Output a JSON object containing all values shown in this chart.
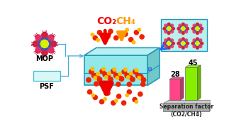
{
  "bg_color": "#ffffff",
  "membrane_color": "#90e8e8",
  "membrane_top_color": "#b8f0f0",
  "membrane_right_color": "#70c8c8",
  "membrane_edge_color": "#2299bb",
  "psf_box_color": "#d8f8f8",
  "psf_box_edge": "#44bbcc",
  "co2_label": "CO₂",
  "ch4_label": "CH₄",
  "co2_color": "#ee0000",
  "ch4_color": "#ff9900",
  "mop_label": "MOP",
  "psf_label": "PSF",
  "bar_values": [
    28,
    45
  ],
  "bar_pink": "#ff4488",
  "bar_green": "#88ee00",
  "bar_xlabel_line1": "Separation factor",
  "bar_xlabel_line2": "(CO2/CH4)",
  "bar_numbers": [
    "28",
    "45"
  ],
  "arrow_cyan": "#44aadd",
  "arrow_blue": "#2266ee",
  "label_fontsize": 7,
  "bar_label_fontsize": 7,
  "inset_bg": "#b8f0f0",
  "inset_edge": "#2299bb",
  "platform_color": "#aaaaaa",
  "platform_top_color": "#cccccc"
}
